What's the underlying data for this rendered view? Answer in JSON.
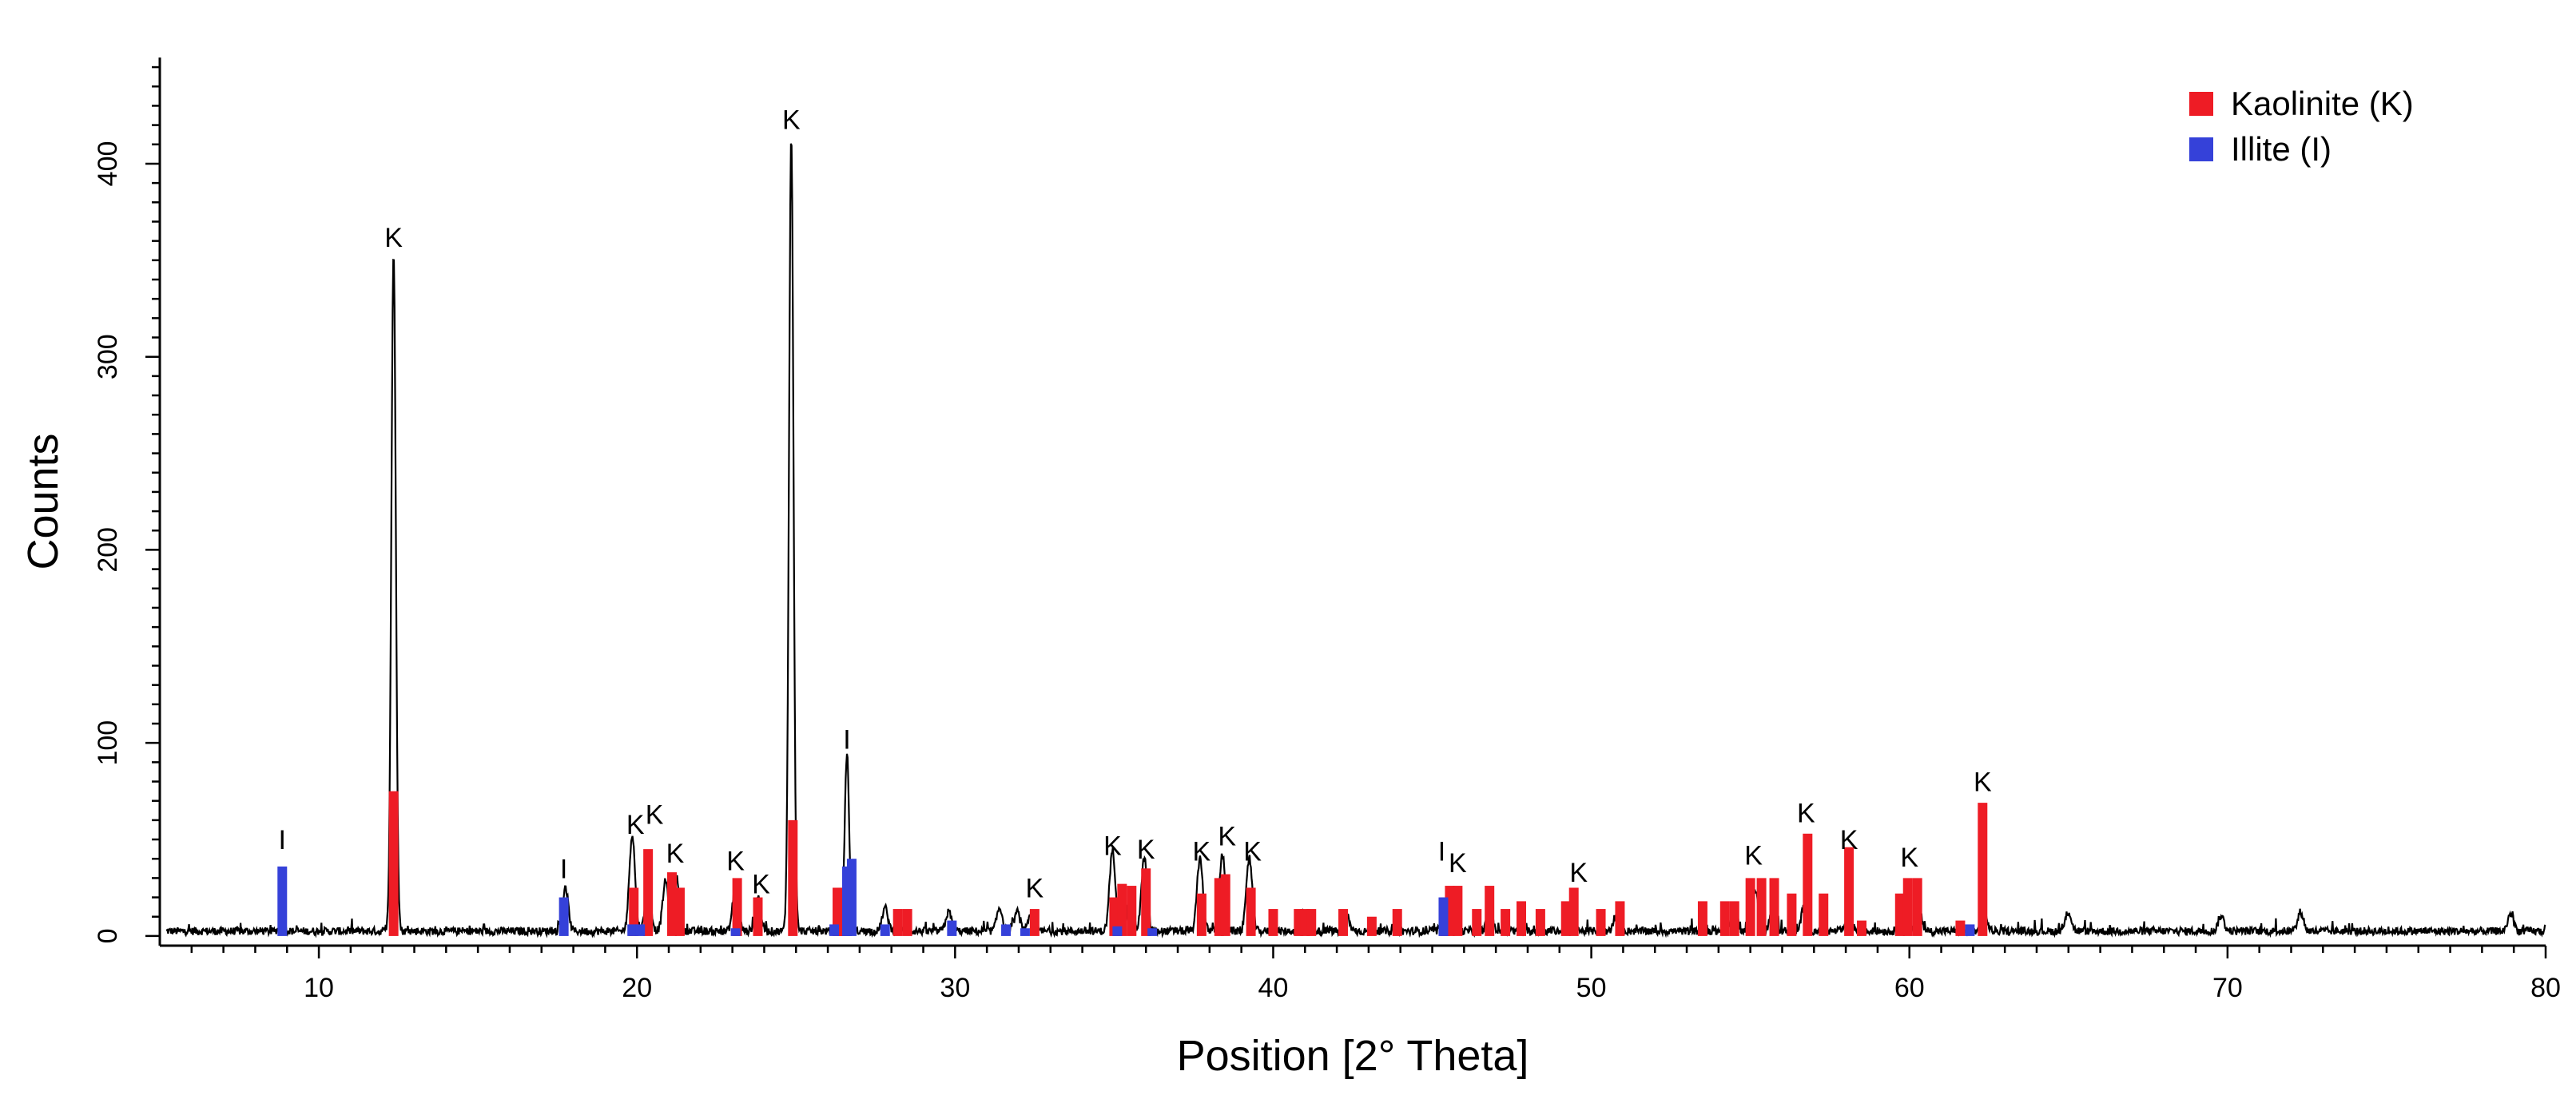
{
  "colors": {
    "kaolinite": "#ee1c25",
    "illite": "#3541d9",
    "pattern": "#000000"
  },
  "chart_data": {
    "type": "line",
    "xlabel": "Position [2° Theta]",
    "ylabel": "Counts",
    "xlim": [
      5,
      80
    ],
    "ylim": [
      -5,
      455
    ],
    "x_ticks": [
      10,
      20,
      30,
      40,
      50,
      60,
      70,
      80
    ],
    "x_tick_labels": [
      "10",
      "20",
      "30",
      "40",
      "50",
      "60",
      "70",
      "80"
    ],
    "y_ticks": [
      0,
      100,
      200,
      300,
      400
    ],
    "y_tick_labels": [
      "0",
      "100",
      "200",
      "300",
      "400"
    ],
    "grid": false,
    "legend_position": "top-right",
    "legend": [
      {
        "label": "Kaolinite (K)",
        "color": "#ee1c25"
      },
      {
        "label": "Illite (I)",
        "color": "#3541d9"
      }
    ],
    "pattern_peaks": [
      [
        8.85,
        4
      ],
      [
        12.35,
        352
      ],
      [
        17.75,
        22
      ],
      [
        19.85,
        50
      ],
      [
        20.35,
        24
      ],
      [
        20.9,
        26
      ],
      [
        21.25,
        28
      ],
      [
        23.1,
        24
      ],
      [
        23.8,
        18
      ],
      [
        24.85,
        412
      ],
      [
        26.6,
        92
      ],
      [
        27.8,
        12
      ],
      [
        29.8,
        10
      ],
      [
        31.4,
        12
      ],
      [
        31.95,
        10
      ],
      [
        32.4,
        8
      ],
      [
        34.95,
        42
      ],
      [
        35.5,
        20
      ],
      [
        35.95,
        38
      ],
      [
        37.7,
        38
      ],
      [
        38.4,
        40
      ],
      [
        39.25,
        38
      ],
      [
        41.0,
        10
      ],
      [
        42.3,
        9
      ],
      [
        45.55,
        22
      ],
      [
        46.8,
        10
      ],
      [
        49.4,
        14
      ],
      [
        50.8,
        8
      ],
      [
        54.5,
        12
      ],
      [
        55.15,
        22
      ],
      [
        55.7,
        12
      ],
      [
        56.7,
        14
      ],
      [
        58.1,
        10
      ],
      [
        59.9,
        10
      ],
      [
        60.3,
        10
      ],
      [
        62.35,
        10
      ],
      [
        65.0,
        10
      ],
      [
        69.8,
        8
      ],
      [
        72.3,
        10
      ],
      [
        78.9,
        9
      ]
    ],
    "series": [
      {
        "name": "Kaolinite (K)",
        "color": "#ee1c25",
        "x": [
          12.35,
          19.9,
          20.35,
          21.1,
          21.35,
          23.15,
          23.8,
          24.9,
          26.3,
          26.45,
          28.2,
          28.5,
          32.5,
          35.0,
          35.25,
          35.55,
          36.0,
          37.75,
          38.3,
          38.5,
          39.3,
          40.0,
          40.8,
          41.0,
          41.2,
          42.2,
          43.1,
          43.9,
          45.4,
          45.55,
          45.8,
          46.4,
          46.8,
          47.3,
          47.8,
          48.4,
          49.2,
          49.45,
          50.3,
          50.9,
          53.5,
          54.2,
          54.5,
          55.0,
          55.35,
          55.75,
          56.3,
          56.8,
          57.3,
          58.1,
          58.5,
          59.7,
          59.95,
          60.25,
          61.6,
          62.3
        ],
        "y": [
          75,
          25,
          45,
          33,
          25,
          30,
          20,
          60,
          25,
          25,
          14,
          14,
          14,
          20,
          27,
          26,
          35,
          22,
          30,
          32,
          25,
          14,
          14,
          14,
          14,
          14,
          10,
          14,
          20,
          26,
          26,
          14,
          26,
          14,
          18,
          14,
          18,
          25,
          14,
          18,
          18,
          18,
          18,
          30,
          30,
          30,
          22,
          53,
          22,
          46,
          8,
          22,
          30,
          30,
          8,
          69
        ]
      },
      {
        "name": "Illite (I)",
        "color": "#3541d9",
        "x": [
          8.85,
          17.7,
          19.85,
          20.1,
          23.1,
          26.2,
          26.6,
          26.75,
          27.8,
          29.9,
          31.6,
          32.2,
          35.1,
          36.2,
          45.35,
          61.9
        ],
        "y": [
          36,
          20,
          6,
          6,
          4,
          6,
          36,
          40,
          6,
          8,
          6,
          4,
          5,
          4,
          20,
          6
        ]
      }
    ],
    "annotations": [
      {
        "text": "I",
        "x": 8.85,
        "y": 45
      },
      {
        "text": "K",
        "x": 12.35,
        "y": 357
      },
      {
        "text": "I",
        "x": 17.7,
        "y": 30
      },
      {
        "text": "K",
        "x": 19.95,
        "y": 53
      },
      {
        "text": "K",
        "x": 20.55,
        "y": 58
      },
      {
        "text": "K",
        "x": 21.2,
        "y": 38
      },
      {
        "text": "K",
        "x": 23.1,
        "y": 34
      },
      {
        "text": "K",
        "x": 23.9,
        "y": 22
      },
      {
        "text": "K",
        "x": 24.85,
        "y": 418
      },
      {
        "text": "I",
        "x": 26.6,
        "y": 97
      },
      {
        "text": "K",
        "x": 32.5,
        "y": 20
      },
      {
        "text": "K",
        "x": 34.95,
        "y": 42
      },
      {
        "text": "K",
        "x": 36.0,
        "y": 40
      },
      {
        "text": "K",
        "x": 37.75,
        "y": 39
      },
      {
        "text": "K",
        "x": 38.55,
        "y": 47
      },
      {
        "text": "K",
        "x": 39.35,
        "y": 39
      },
      {
        "text": "I",
        "x": 45.3,
        "y": 39
      },
      {
        "text": "K",
        "x": 45.8,
        "y": 33
      },
      {
        "text": "K",
        "x": 49.6,
        "y": 28
      },
      {
        "text": "K",
        "x": 55.1,
        "y": 37
      },
      {
        "text": "K",
        "x": 56.75,
        "y": 59
      },
      {
        "text": "K",
        "x": 58.1,
        "y": 45
      },
      {
        "text": "K",
        "x": 60.0,
        "y": 36
      },
      {
        "text": "K",
        "x": 62.3,
        "y": 75
      }
    ]
  }
}
